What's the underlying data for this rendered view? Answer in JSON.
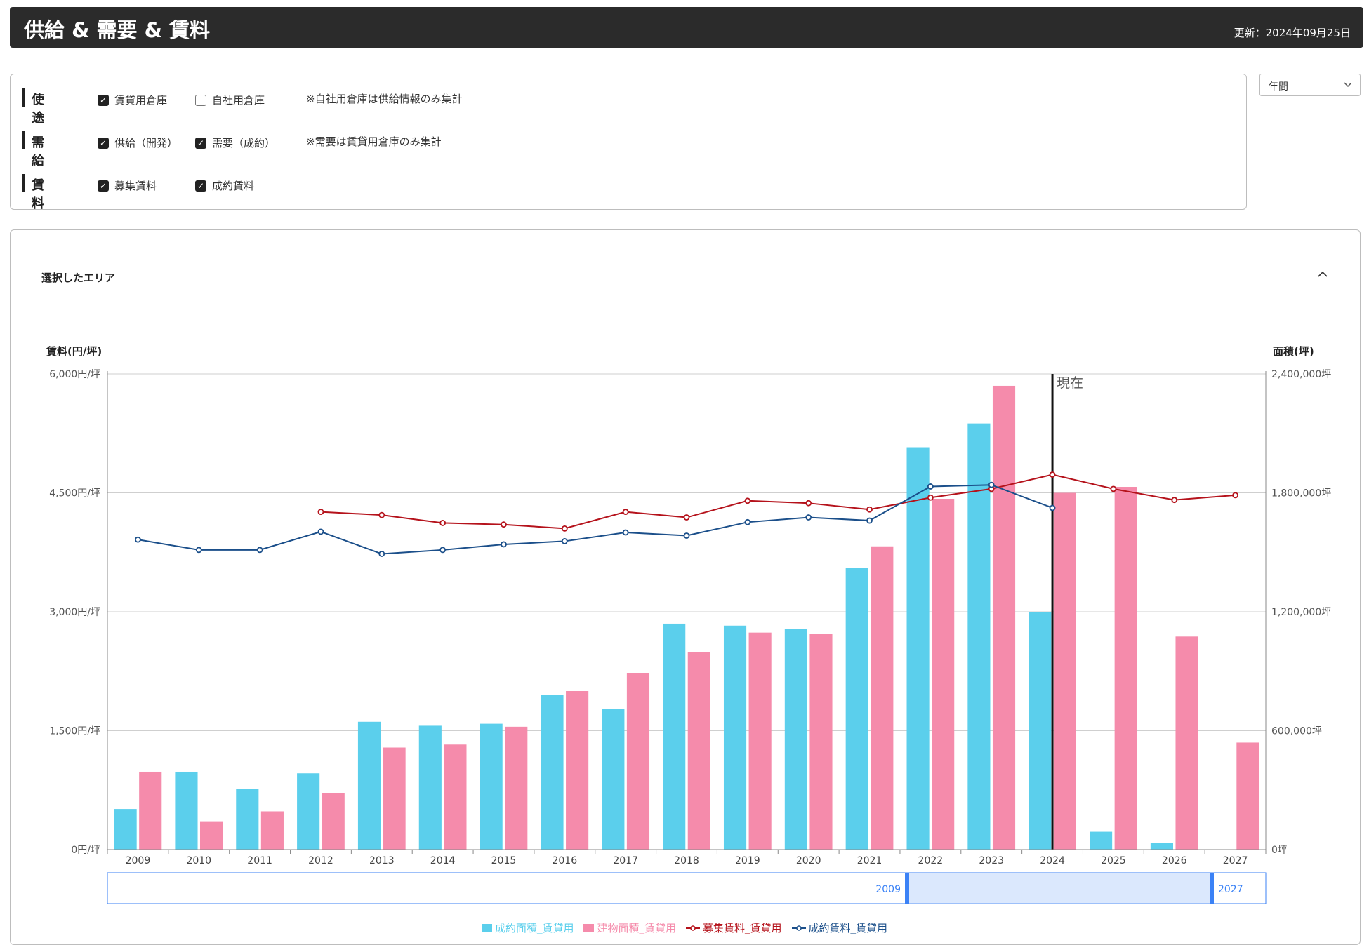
{
  "header": {
    "title": "供給 & 需要 & 賃料",
    "updated": "更新：2024年09月25日"
  },
  "filters": {
    "rows": [
      {
        "label": "使途",
        "options": [
          {
            "label": "賃貸用倉庫",
            "checked": true
          },
          {
            "label": "自社用倉庫",
            "checked": false
          }
        ],
        "note": "※自社用倉庫は供給情報のみ集計"
      },
      {
        "label": "需給",
        "options": [
          {
            "label": "供給（開発）",
            "checked": true
          },
          {
            "label": "需要（成約）",
            "checked": true
          }
        ],
        "note": "※需要は賃貸用倉庫のみ集計"
      },
      {
        "label": "賃料",
        "options": [
          {
            "label": "募集賃料",
            "checked": true
          },
          {
            "label": "成約賃料",
            "checked": true
          }
        ],
        "note": ""
      }
    ],
    "checkmark": "✓"
  },
  "period_select": {
    "value": "年間"
  },
  "card": {
    "title": "選択したエリア"
  },
  "chart_data": {
    "type": "bar",
    "left_axis_label": "賃料(円/坪)",
    "right_axis_label": "面積(坪)",
    "left_ticks": [
      "0円/坪",
      "1,500円/坪",
      "3,000円/坪",
      "4,500円/坪",
      "6,000円/坪"
    ],
    "right_ticks": [
      "0坪",
      "600,000坪",
      "1,200,000坪",
      "1,800,000坪",
      "2,400,000坪"
    ],
    "ylim_left": [
      0,
      6000
    ],
    "ylim_right": [
      0,
      2400000
    ],
    "categories": [
      "2009",
      "2010",
      "2011",
      "2012",
      "2013",
      "2014",
      "2015",
      "2016",
      "2017",
      "2018",
      "2019",
      "2020",
      "2021",
      "2022",
      "2023",
      "2024",
      "2025",
      "2026",
      "2027"
    ],
    "current_marker": {
      "category": "2024",
      "label": "現在"
    },
    "series": [
      {
        "name": "成約面積_賃貸用",
        "type": "bar",
        "axis": "right",
        "color": "#5bcfec",
        "values": [
          205000,
          393000,
          305000,
          385000,
          645000,
          625000,
          635000,
          780000,
          710000,
          1140000,
          1130000,
          1115000,
          1420000,
          2030000,
          2150000,
          1200000,
          90000,
          33000,
          null
        ]
      },
      {
        "name": "建物面積_賃貸用",
        "type": "bar",
        "axis": "right",
        "color": "#f58bab",
        "values": [
          393000,
          143000,
          193000,
          285000,
          515000,
          530000,
          620000,
          800000,
          890000,
          995000,
          1095000,
          1090000,
          1530000,
          1770000,
          2340000,
          1800000,
          1830000,
          1075000,
          540000
        ]
      },
      {
        "name": "募集賃料_賃貸用",
        "type": "line",
        "axis": "left",
        "color": "#b5121b",
        "values": [
          null,
          null,
          null,
          4260,
          4220,
          4120,
          4100,
          4050,
          4260,
          4190,
          4400,
          4370,
          4290,
          4440,
          4550,
          4730,
          4550,
          4410,
          4470
        ]
      },
      {
        "name": "成約賃料_賃貸用",
        "type": "line",
        "axis": "left",
        "color": "#1b4f8a",
        "values": [
          3910,
          3780,
          3780,
          4010,
          3730,
          3780,
          3850,
          3890,
          4000,
          3960,
          4130,
          4190,
          4150,
          4580,
          4600,
          4310,
          null,
          null,
          null
        ]
      }
    ],
    "range_slider": {
      "start": "2009",
      "end": "2027"
    }
  }
}
